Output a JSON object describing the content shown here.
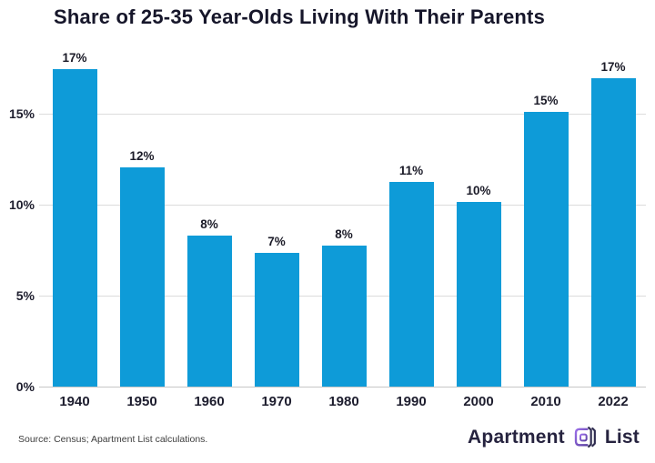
{
  "header": {
    "title": "Share of 25-35 Year-Olds Living With Their Parents"
  },
  "chart_data": {
    "type": "bar",
    "title": "Share of 25-35 Year-Olds Living With Their Parents",
    "categories": [
      "1940",
      "1950",
      "1960",
      "1970",
      "1980",
      "1990",
      "2000",
      "2010",
      "2022"
    ],
    "values": [
      17.45,
      12.05,
      8.3,
      7.35,
      7.75,
      11.25,
      10.15,
      15.1,
      16.95
    ],
    "bar_labels": [
      "17%",
      "12%",
      "8%",
      "7%",
      "8%",
      "11%",
      "10%",
      "15%",
      "17%"
    ],
    "xlabel": "",
    "ylabel": "",
    "ylim": [
      0,
      18
    ],
    "yticks": [
      0,
      5,
      10,
      15
    ],
    "ytick_labels": [
      "0%",
      "5%",
      "10%",
      "15%"
    ],
    "grid": "horizontal",
    "legend": "none",
    "bar_color": "#0E9BD8"
  },
  "footer": {
    "source": "Source: Census; Apartment List calculations.",
    "logo": {
      "word1": "Apartment",
      "word2": "List",
      "icon": "apartment-list-logo-icon",
      "text_color": "#26233F",
      "accent_color": "#7D55C7"
    }
  },
  "colors": {
    "bar": "#0E9BD8",
    "grid": "#DCDCDC",
    "title_text": "#16162A",
    "axis_text": "#1D1D2E",
    "source_text": "#3D3D3D"
  }
}
